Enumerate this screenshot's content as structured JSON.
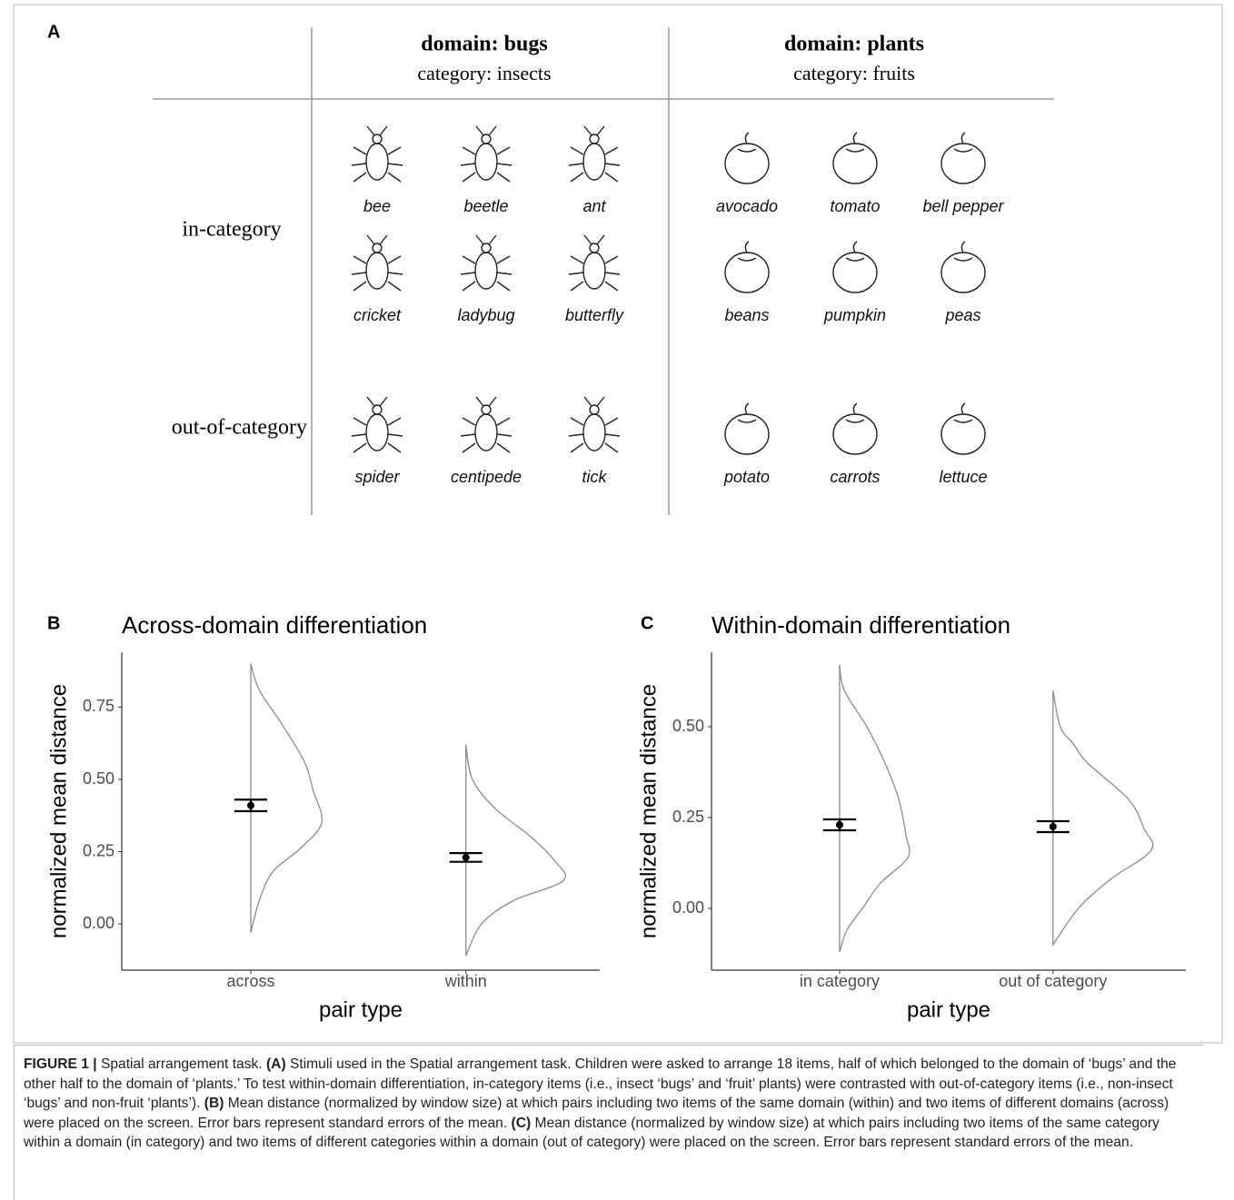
{
  "panel_a": {
    "label": "A",
    "columns": [
      {
        "domain": "domain: bugs",
        "category": "category: insects",
        "items": [
          [
            "bee",
            "beetle",
            "ant"
          ],
          [
            "cricket",
            "ladybug",
            "butterfly"
          ],
          [
            "spider",
            "centipede",
            "tick"
          ]
        ]
      },
      {
        "domain": "domain: plants",
        "category": "category: fruits",
        "items": [
          [
            "avocado",
            "tomato",
            "bell pepper"
          ],
          [
            "beans",
            "pumpkin",
            "peas"
          ],
          [
            "potato",
            "carrots",
            "lettuce"
          ]
        ]
      }
    ],
    "row_labels": [
      "in-category",
      "out-of-category"
    ]
  },
  "chart_data": [
    {
      "type": "violin",
      "panel_label": "B",
      "title": "Across-domain differentiation",
      "y_label": "normalized mean distance",
      "x_label": "pair type",
      "categories": [
        "across",
        "within"
      ],
      "values": [
        0.41,
        0.23
      ],
      "errors": [
        0.02,
        0.015
      ],
      "distributions": [
        {
          "y": [
            0.9,
            0.81,
            0.69,
            0.56,
            0.46,
            0.35,
            0.26,
            0.18,
            0.08,
            -0.03
          ],
          "density": [
            0,
            0.23,
            0.86,
            1.48,
            1.72,
            1.95,
            1.35,
            0.6,
            0.23,
            0
          ]
        },
        {
          "y": [
            0.62,
            0.5,
            0.4,
            0.3,
            0.22,
            0.15,
            0.08,
            0,
            -0.11
          ],
          "density": [
            0,
            0.18,
            0.8,
            1.8,
            2.43,
            2.68,
            1.3,
            0.43,
            0
          ]
        }
      ],
      "color": "#8c8c8c",
      "mean_color": "#000000",
      "ylim": [
        -0.16,
        0.94
      ],
      "yticks": [
        {
          "value": 0,
          "label": "0.00"
        },
        0.25,
        {
          "value": 0.5,
          "label": "0.50"
        },
        0.75
      ]
    },
    {
      "type": "violin",
      "panel_label": "C",
      "title": "Within-domain differentiation",
      "y_label": "normalized mean distance",
      "x_label": "pair type",
      "categories": [
        "in category",
        "out of category"
      ],
      "values": [
        0.23,
        0.225
      ],
      "errors": [
        0.015,
        0.015
      ],
      "distributions": [
        {
          "y": [
            0.67,
            0.6,
            0.5,
            0.4,
            0.3,
            0.2,
            0.14,
            0.07,
            0,
            -0.06,
            -0.12
          ],
          "density": [
            0,
            0.13,
            0.75,
            1.25,
            1.63,
            1.83,
            1.88,
            1.13,
            0.63,
            0.2,
            0
          ]
        },
        {
          "y": [
            0.6,
            0.5,
            0.45,
            0.4,
            0.3,
            0.22,
            0.16,
            0.08,
            0,
            -0.1
          ],
          "density": [
            0,
            0.2,
            0.58,
            0.95,
            2.08,
            2.5,
            2.7,
            1.58,
            0.7,
            0
          ]
        }
      ],
      "color": "#8c8c8c",
      "mean_color": "#000000",
      "ylim": [
        -0.17,
        0.705
      ],
      "yticks": [
        {
          "value": 0,
          "label": "0.00"
        },
        0.25,
        {
          "value": 0.5,
          "label": "0.50"
        }
      ]
    }
  ],
  "caption": [
    {
      "text": "FIGURE 1 |",
      "bold": true
    },
    {
      "text": " Spatial arrangement task. ",
      "bold": false
    },
    {
      "text": "(A)",
      "bold": true
    },
    {
      "text": " Stimuli used in the Spatial arrangement task. Children were asked to arrange 18 items, half of which belonged to the domain of ‘bugs’ and the other half to the domain of ‘plants.’ To test within-domain differentiation, in-category items (i.e., insect ‘bugs’ and ‘fruit’ plants) were contrasted with out-of-category items (i.e., non-insect ‘bugs’ and non-fruit ‘plants’). ",
      "bold": false
    },
    {
      "text": "(B)",
      "bold": true
    },
    {
      "text": " Mean distance (normalized by window size) at which pairs including two items of the same domain (within) and two items of different domains (across) were placed on the screen. Error bars represent standard errors of the mean. ",
      "bold": false
    },
    {
      "text": "(C)",
      "bold": true
    },
    {
      "text": " Mean distance (normalized by window size) at which pairs including two items of the same category within a domain (in category) and two items of different categories within a domain (out of category) were placed on the screen. Error bars represent standard errors of the mean.",
      "bold": false
    }
  ]
}
